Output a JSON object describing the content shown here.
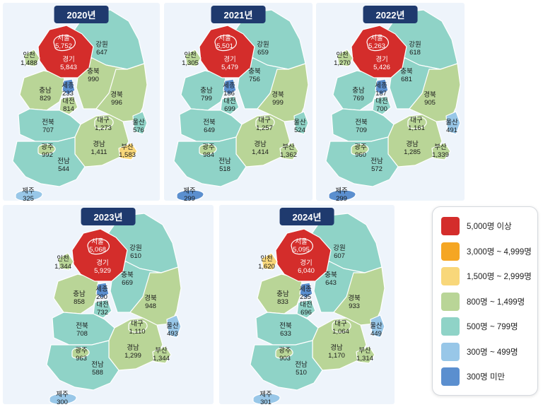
{
  "colors": {
    "5000": "#d42d2b",
    "3000": "#f5a623",
    "1500": "#f8d77a",
    "800": "#b9d597",
    "500": "#8fd3c7",
    "300": "#98c7e8",
    "0": "#5b8fcf"
  },
  "legend": [
    {
      "label": "5,000명 이상",
      "color": "#d42d2b"
    },
    {
      "label": "3,000명 ~ 4,999명",
      "color": "#f5a623"
    },
    {
      "label": "1,500명 ~ 2,999명",
      "color": "#f8d77a"
    },
    {
      "label": "800명 ~ 1,499명",
      "color": "#b9d597"
    },
    {
      "label": "500명 ~ 799명",
      "color": "#8fd3c7"
    },
    {
      "label": "300명 ~ 499명",
      "color": "#98c7e8"
    },
    {
      "label": "300명 미만",
      "color": "#5b8fcf"
    }
  ],
  "maps": [
    {
      "year": "2020년",
      "values": {
        "서울": "5,752",
        "경기": "5,843",
        "인천": "1,488",
        "강원": "647",
        "충북": "990",
        "세종": "233",
        "충남": "829",
        "대전": "814",
        "경북": "996",
        "대구": "1,273",
        "울산": "576",
        "전북": "707",
        "광주": "992",
        "경남": "1,411",
        "부산": "1,583",
        "전남": "544",
        "제주": "325"
      }
    },
    {
      "year": "2021년",
      "values": {
        "서울": "5,501",
        "경기": "5,479",
        "인천": "1,305",
        "강원": "659",
        "충북": "756",
        "세종": "186",
        "충남": "799",
        "대전": "699",
        "경북": "999",
        "대구": "1,257",
        "울산": "524",
        "전북": "649",
        "광주": "984",
        "경남": "1,414",
        "부산": "1,362",
        "전남": "518",
        "제주": "299"
      }
    },
    {
      "year": "2022년",
      "values": {
        "서울": "5,263",
        "경기": "5,426",
        "인천": "1,270",
        "강원": "618",
        "충북": "681",
        "세종": "187",
        "충남": "769",
        "대전": "700",
        "경북": "905",
        "대구": "1,161",
        "울산": "491",
        "전북": "709",
        "광주": "960",
        "경남": "1,285",
        "부산": "1,339",
        "전남": "572",
        "제주": "299"
      }
    },
    {
      "year": "2023년",
      "values": {
        "서울": "5,068",
        "경기": "5,929",
        "인천": "1,344",
        "강원": "610",
        "충북": "669",
        "세종": "200",
        "충남": "858",
        "대전": "732",
        "경북": "948",
        "대구": "1,110",
        "울산": "493",
        "전북": "708",
        "광주": "963",
        "경남": "1,299",
        "부산": "1,344",
        "전남": "588",
        "제주": "300"
      }
    },
    {
      "year": "2024년",
      "values": {
        "서울": "5,095",
        "경기": "6,040",
        "인천": "1,620",
        "강원": "607",
        "충북": "643",
        "세종": "235",
        "충남": "833",
        "대전": "696",
        "경북": "933",
        "대구": "1,064",
        "울산": "449",
        "전북": "633",
        "광주": "903",
        "경남": "1,170",
        "부산": "1,314",
        "전남": "510",
        "제주": "301"
      }
    }
  ]
}
